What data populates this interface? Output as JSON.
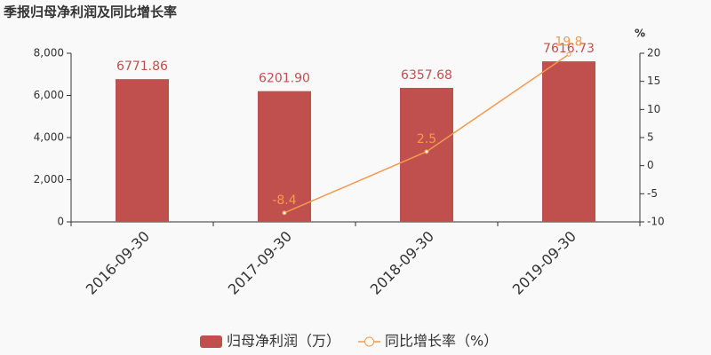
{
  "chart_data": {
    "type": "bar-line",
    "title": "季报归母净利润及同比增长率",
    "categories": [
      "2016-09-30",
      "2017-09-30",
      "2018-09-30",
      "2019-09-30"
    ],
    "series": [
      {
        "name": "归母净利润（万）",
        "type": "bar",
        "color": "#c0504d",
        "values": [
          6771.86,
          6201.9,
          6357.68,
          7616.73
        ],
        "value_labels": [
          "6771.86",
          "6201.90",
          "6357.68",
          "7616.73"
        ]
      },
      {
        "name": "同比增长率（%）",
        "type": "line",
        "color": "#f5994e",
        "axis": "y2",
        "values": [
          null,
          -8.4,
          2.5,
          19.8
        ]
      }
    ],
    "ylim": [
      0,
      8000
    ],
    "yticks": [
      0,
      {
        "value": 2000,
        "label": "2,000"
      },
      {
        "value": 4000,
        "label": "4,000"
      },
      {
        "value": 6000,
        "label": "6,000"
      },
      {
        "value": 8000,
        "label": "8,000"
      }
    ],
    "y2label": "%",
    "y2lim": [
      -10,
      20
    ],
    "y2ticks": [
      -10,
      -5,
      0,
      5,
      10,
      15,
      20
    ],
    "legend": "bottom"
  }
}
